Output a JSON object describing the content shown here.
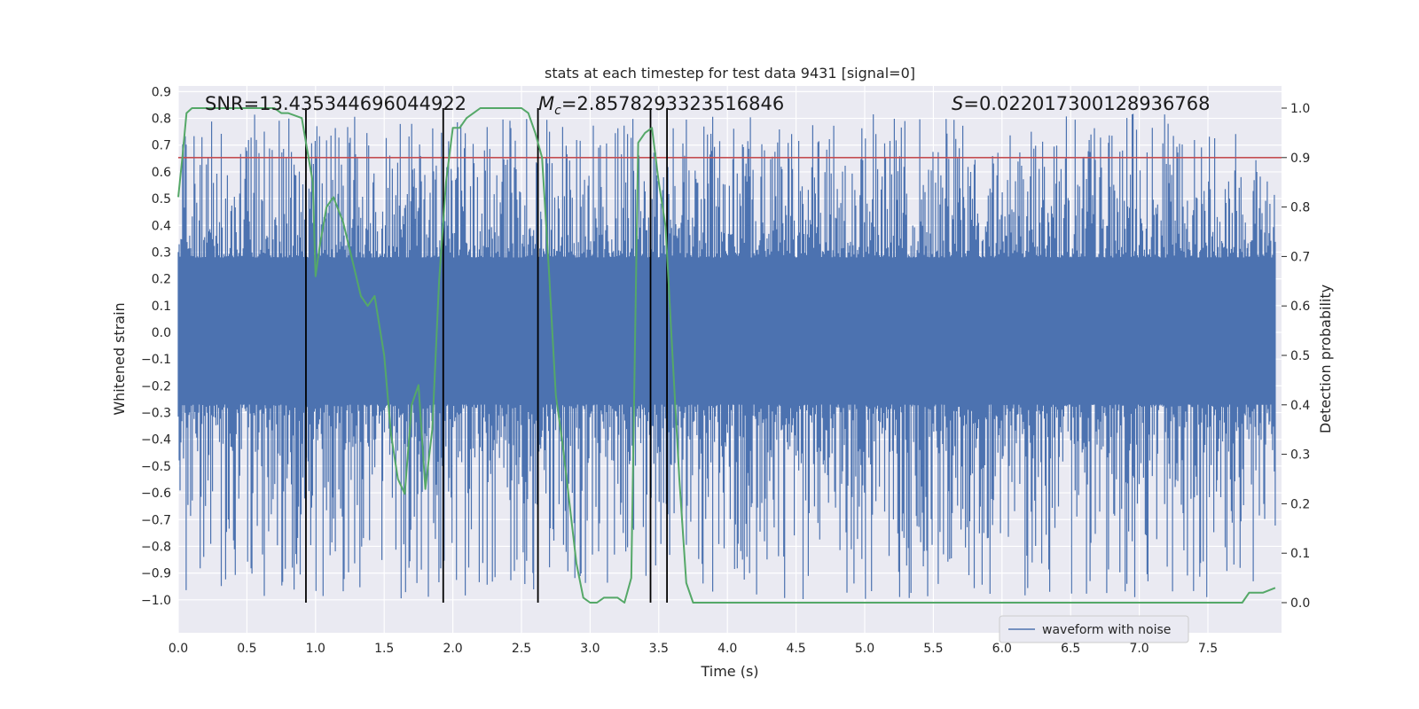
{
  "chart_data": {
    "type": "line",
    "title": "stats at each timestep for test data 9431 [signal=0]",
    "xlabel": "Time (s)",
    "ylabel": "Whitened strain",
    "y2label": "Detection probability",
    "xlim": [
      0.0,
      8.0
    ],
    "ylim": [
      -1.09,
      0.91
    ],
    "y2lim": [
      -0.05,
      1.05
    ],
    "xticks": [
      "0.0",
      "0.5",
      "1.0",
      "1.5",
      "2.0",
      "2.5",
      "3.0",
      "3.5",
      "4.0",
      "4.5",
      "5.0",
      "5.5",
      "6.0",
      "6.5",
      "7.0",
      "7.5"
    ],
    "yticks": [
      "0.9",
      "0.8",
      "0.7",
      "0.6",
      "0.5",
      "0.4",
      "0.3",
      "0.2",
      "0.1",
      "0.0",
      "−0.1",
      "−0.2",
      "−0.3",
      "−0.4",
      "−0.5",
      "−0.6",
      "−0.7",
      "−0.8",
      "−0.9",
      "−1.0"
    ],
    "y2ticks": [
      "1.0",
      "0.9",
      "0.8",
      "0.7",
      "0.6",
      "0.5",
      "0.4",
      "0.3",
      "0.2",
      "0.1",
      "0.0"
    ],
    "annotations": {
      "snr": "SNR=13.435344696044922",
      "mc_symbol": "M",
      "mc_sub": "c",
      "mc_value": "=2.8578293323516846",
      "s_symbol": "S",
      "s_value": "=0.022017300128936768"
    },
    "legend": {
      "label": "waveform with noise",
      "location": "lower-right"
    },
    "threshold": {
      "value": 0.9,
      "axis": "right",
      "color": "#c44e52"
    },
    "vertical_markers": [
      0.93,
      1.93,
      2.62,
      3.44,
      3.56
    ],
    "waveform": {
      "name": "waveform with noise",
      "color": "#4c72b0",
      "x_range": [
        0.0,
        7.99
      ],
      "envelope_upper": 0.28,
      "envelope_lower": -0.27,
      "approx_max": 0.82,
      "approx_min": -1.0
    },
    "probability_series": {
      "color": "#55a868",
      "x": [
        0.0,
        0.03,
        0.06,
        0.1,
        0.15,
        0.2,
        0.3,
        0.4,
        0.5,
        0.6,
        0.7,
        0.75,
        0.8,
        0.9,
        0.93,
        0.98,
        1.0,
        1.03,
        1.08,
        1.13,
        1.2,
        1.27,
        1.33,
        1.38,
        1.43,
        1.5,
        1.55,
        1.6,
        1.65,
        1.7,
        1.75,
        1.8,
        1.85,
        1.9,
        1.95,
        2.0,
        2.05,
        2.1,
        2.2,
        2.3,
        2.4,
        2.45,
        2.5,
        2.55,
        2.6,
        2.65,
        2.7,
        2.75,
        2.8,
        2.85,
        2.9,
        2.95,
        3.0,
        3.05,
        3.1,
        3.15,
        3.2,
        3.25,
        3.3,
        3.35,
        3.4,
        3.45,
        3.5,
        3.55,
        3.6,
        3.65,
        3.7,
        3.75,
        3.8,
        3.85,
        3.9,
        4.0,
        4.5,
        5.0,
        5.5,
        6.0,
        6.5,
        6.6,
        6.8,
        7.0,
        7.2,
        7.4,
        7.45,
        7.5,
        7.55,
        7.6,
        7.75,
        7.8,
        7.9,
        7.99
      ],
      "y": [
        0.82,
        0.9,
        0.99,
        1.0,
        1.0,
        1.0,
        1.0,
        1.0,
        1.0,
        1.0,
        1.0,
        0.99,
        0.99,
        0.98,
        0.93,
        0.85,
        0.66,
        0.72,
        0.8,
        0.82,
        0.77,
        0.69,
        0.62,
        0.6,
        0.62,
        0.5,
        0.34,
        0.25,
        0.22,
        0.4,
        0.44,
        0.23,
        0.35,
        0.65,
        0.85,
        0.96,
        0.96,
        0.98,
        1.0,
        1.0,
        1.0,
        1.0,
        1.0,
        0.99,
        0.95,
        0.9,
        0.67,
        0.42,
        0.32,
        0.2,
        0.08,
        0.01,
        0.0,
        0.0,
        0.01,
        0.01,
        0.01,
        0.0,
        0.05,
        0.93,
        0.95,
        0.96,
        0.85,
        0.76,
        0.5,
        0.25,
        0.04,
        0.0,
        0.0,
        0.0,
        0.0,
        0.0,
        0.0,
        0.0,
        0.0,
        0.0,
        0.0,
        0.0,
        0.0,
        0.0,
        0.0,
        0.0,
        0.0,
        0.0,
        0.0,
        0.0,
        0.0,
        0.02,
        0.02,
        0.03
      ]
    }
  }
}
